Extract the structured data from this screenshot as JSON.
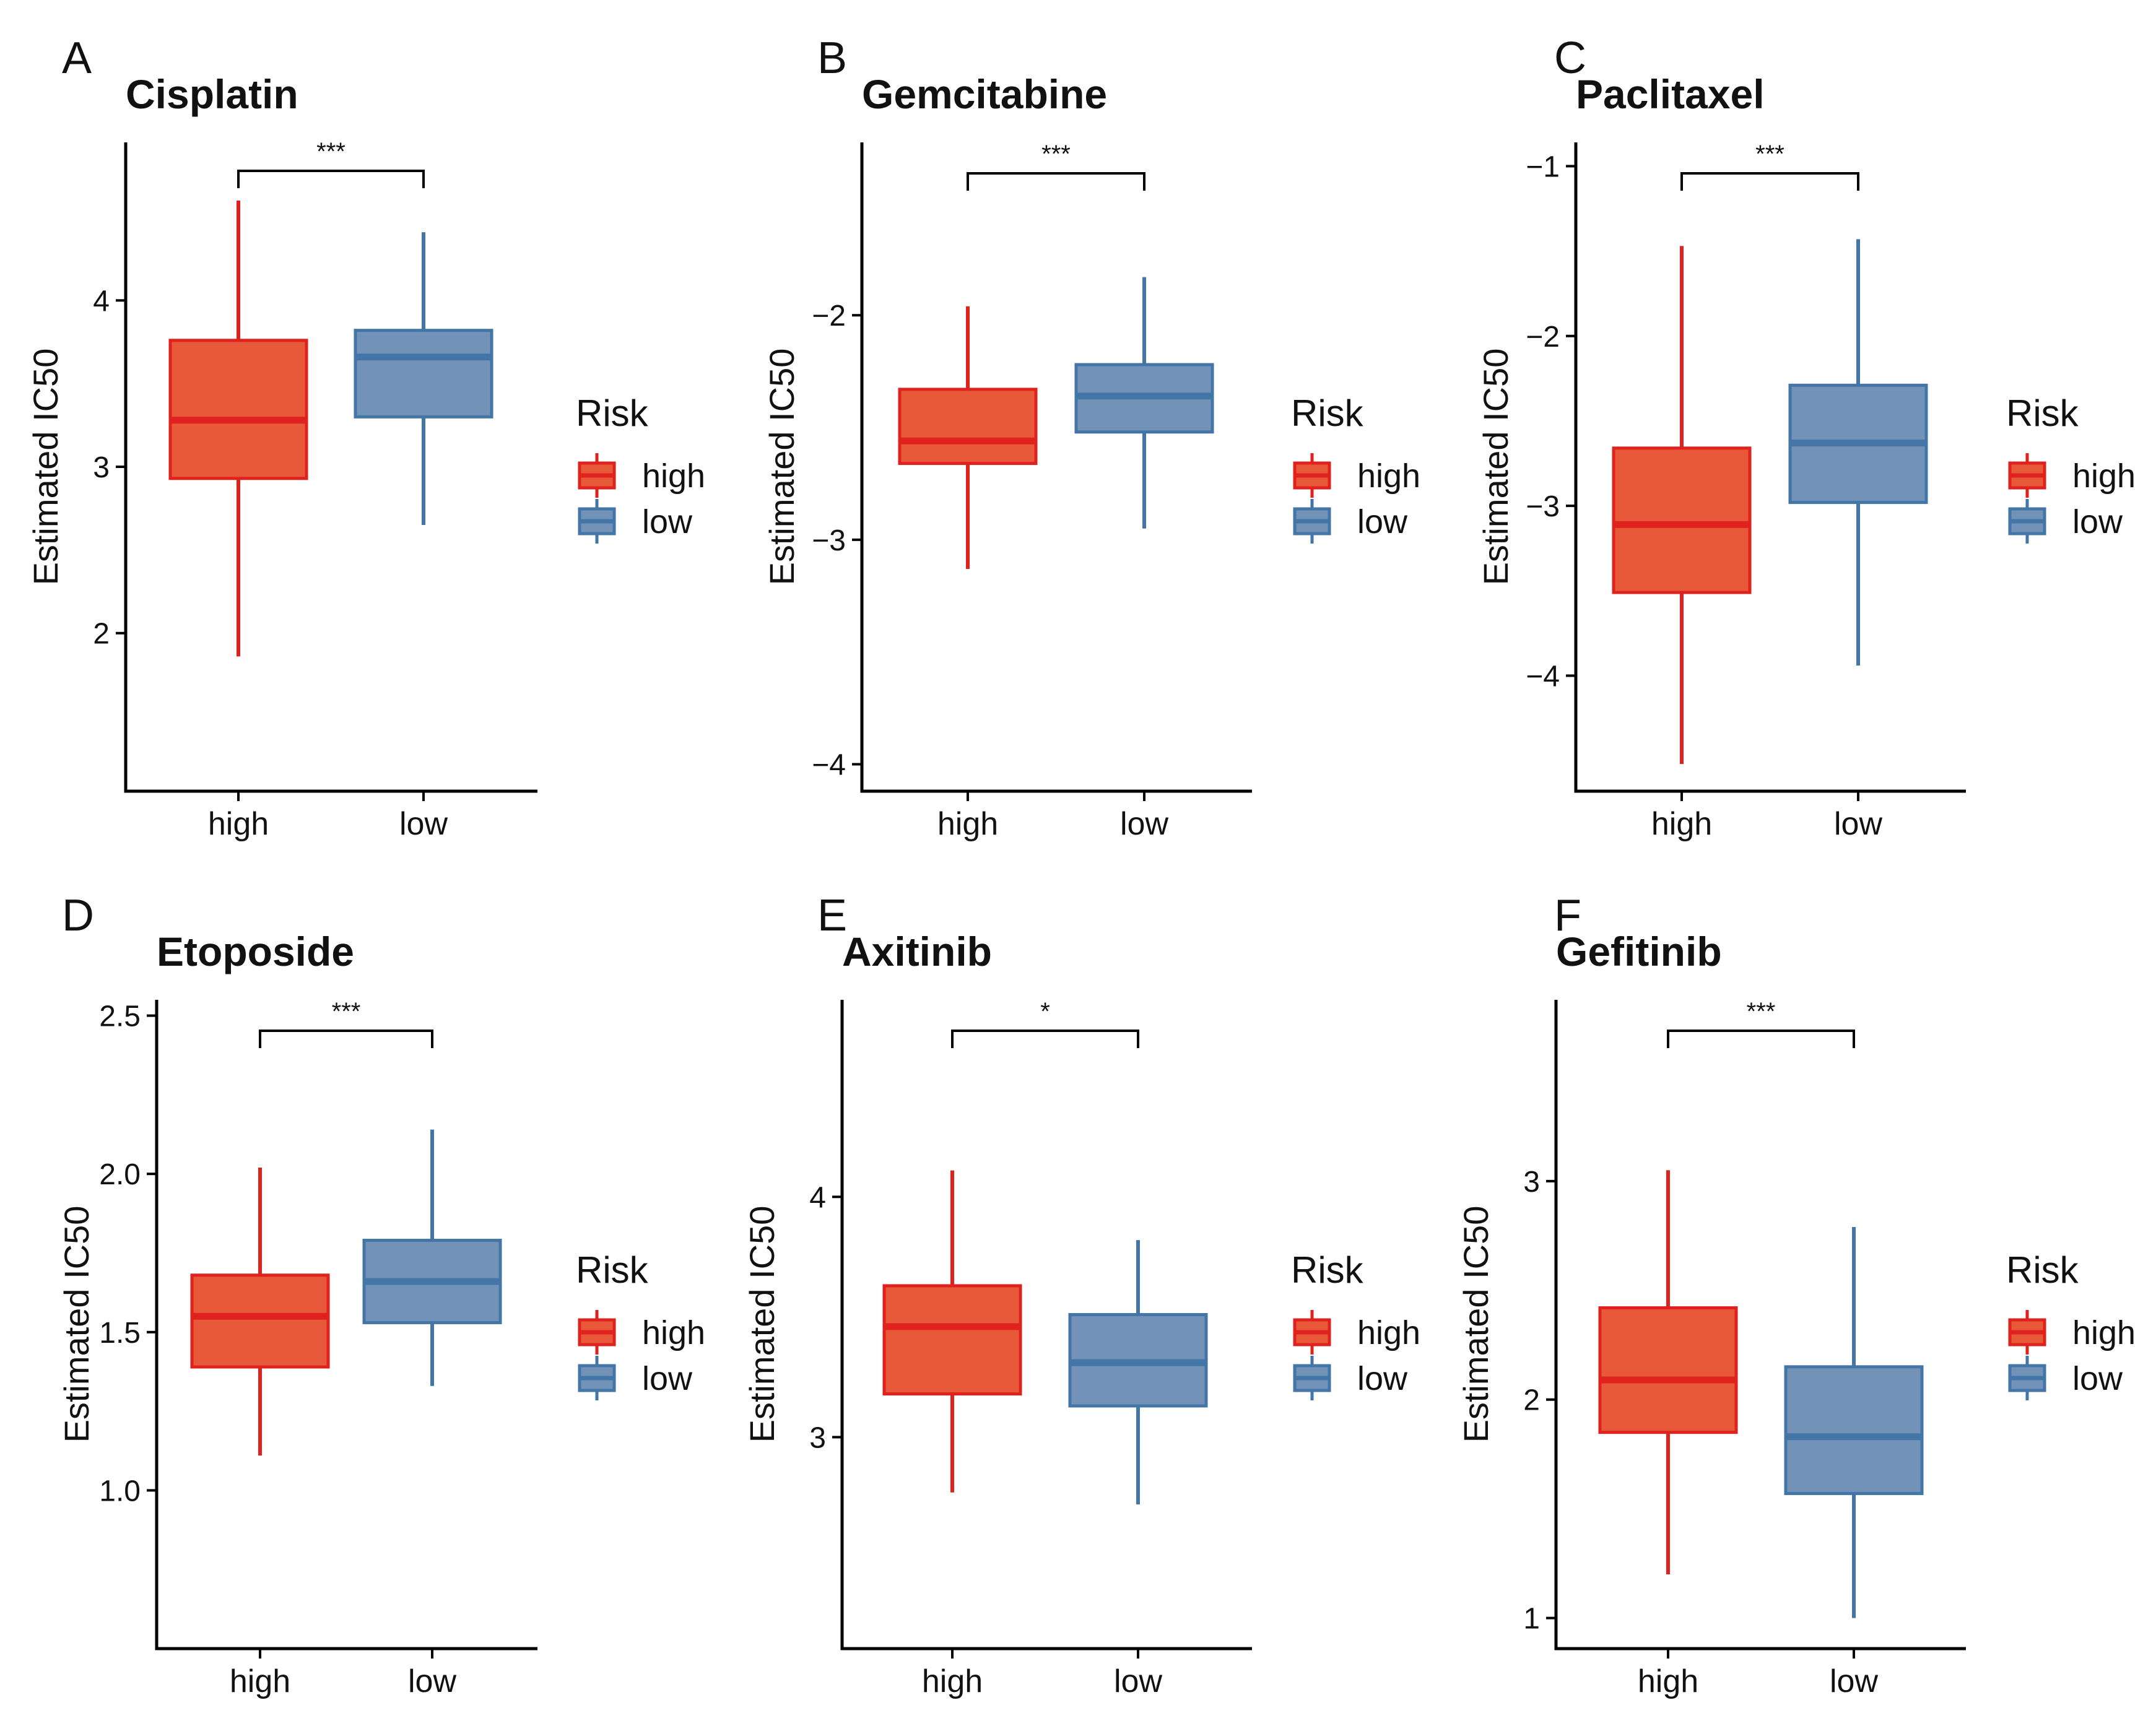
{
  "colors": {
    "high_fill": "#E8593A",
    "high_line": "#E0221E",
    "low_fill": "#7392B8",
    "low_line": "#4376A7"
  },
  "chart_data": [
    {
      "type": "box",
      "letter": "A",
      "title": "Cisplatin",
      "ylabel": "Estimated IC50",
      "categories": [
        "high",
        "low"
      ],
      "ylim": [
        1.05,
        4.95
      ],
      "yticks": [
        "2",
        "3",
        "4"
      ],
      "boxes": [
        {
          "group": "high",
          "min": 1.86,
          "q1": 2.93,
          "median": 3.28,
          "q3": 3.76,
          "max": 4.6
        },
        {
          "group": "low",
          "min": 2.65,
          "q1": 3.3,
          "median": 3.66,
          "q3": 3.82,
          "max": 4.41
        }
      ],
      "significance": "***",
      "legend_title": "Risk",
      "legend_labels": [
        "high",
        "low"
      ]
    },
    {
      "type": "box",
      "letter": "B",
      "title": "Gemcitabine",
      "ylabel": "Estimated IC50",
      "categories": [
        "high",
        "low"
      ],
      "ylim": [
        -4.12,
        -1.23
      ],
      "yticks": [
        "−2",
        "−3",
        "−4"
      ],
      "boxes": [
        {
          "group": "high",
          "min": -3.13,
          "q1": -2.66,
          "median": -2.56,
          "q3": -2.33,
          "max": -1.96
        },
        {
          "group": "low",
          "min": -2.95,
          "q1": -2.52,
          "median": -2.36,
          "q3": -2.22,
          "max": -1.83
        }
      ],
      "significance": "***",
      "legend_title": "Risk",
      "legend_labels": [
        "high",
        "low"
      ]
    },
    {
      "type": "box",
      "letter": "C",
      "title": "Paclitaxel",
      "ylabel": "Estimated IC50",
      "categories": [
        "high",
        "low"
      ],
      "ylim": [
        -4.68,
        -0.86
      ],
      "yticks": [
        "−1",
        "−2",
        "−3",
        "−4"
      ],
      "boxes": [
        {
          "group": "high",
          "min": -4.52,
          "q1": -3.51,
          "median": -3.11,
          "q3": -2.66,
          "max": -1.47
        },
        {
          "group": "low",
          "min": -3.94,
          "q1": -2.98,
          "median": -2.63,
          "q3": -2.29,
          "max": -1.43
        }
      ],
      "significance": "***",
      "legend_title": "Risk",
      "legend_labels": [
        "high",
        "low"
      ]
    },
    {
      "type": "box",
      "letter": "D",
      "title": "Etoposide",
      "ylabel": "Estimated IC50",
      "categories": [
        "high",
        "low"
      ],
      "ylim": [
        0.5,
        2.55
      ],
      "yticks": [
        "1.0",
        "1.5",
        "2.0",
        "2.5"
      ],
      "boxes": [
        {
          "group": "high",
          "min": 1.11,
          "q1": 1.39,
          "median": 1.55,
          "q3": 1.68,
          "max": 2.02
        },
        {
          "group": "low",
          "min": 1.33,
          "q1": 1.53,
          "median": 1.66,
          "q3": 1.79,
          "max": 2.14
        }
      ],
      "significance": "***",
      "legend_title": "Risk",
      "legend_labels": [
        "high",
        "low"
      ]
    },
    {
      "type": "box",
      "letter": "E",
      "title": "Axitinib",
      "ylabel": "Estimated IC50",
      "categories": [
        "high",
        "low"
      ],
      "ylim": [
        2.12,
        4.82
      ],
      "yticks": [
        "3",
        "4"
      ],
      "boxes": [
        {
          "group": "high",
          "min": 2.77,
          "q1": 3.18,
          "median": 3.46,
          "q3": 3.63,
          "max": 4.11
        },
        {
          "group": "low",
          "min": 2.72,
          "q1": 3.13,
          "median": 3.31,
          "q3": 3.51,
          "max": 3.82
        }
      ],
      "significance": "*",
      "legend_title": "Risk",
      "legend_labels": [
        "high",
        "low"
      ]
    },
    {
      "type": "box",
      "letter": "F",
      "title": "Gefitinib",
      "ylabel": "Estimated IC50",
      "categories": [
        "high",
        "low"
      ],
      "ylim": [
        0.86,
        3.83
      ],
      "yticks": [
        "1",
        "2",
        "3"
      ],
      "boxes": [
        {
          "group": "high",
          "min": 1.2,
          "q1": 1.85,
          "median": 2.09,
          "q3": 2.42,
          "max": 3.05
        },
        {
          "group": "low",
          "min": 1.0,
          "q1": 1.57,
          "median": 1.83,
          "q3": 2.15,
          "max": 2.79
        }
      ],
      "significance": "***",
      "legend_title": "Risk",
      "legend_labels": [
        "high",
        "low"
      ]
    }
  ]
}
